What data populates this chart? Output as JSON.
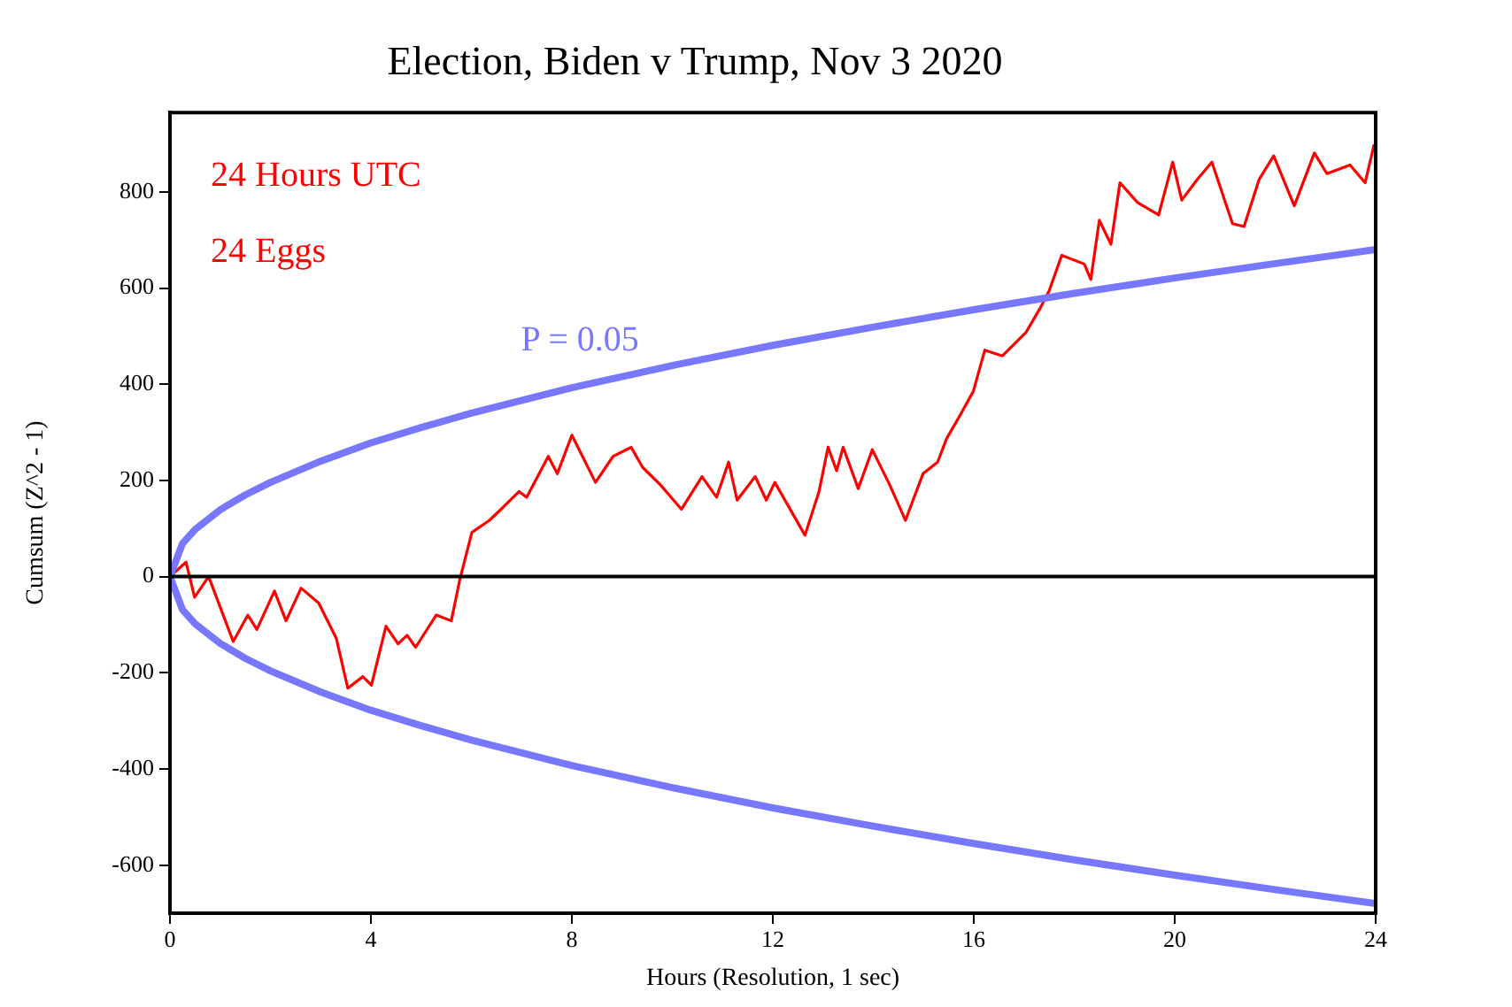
{
  "chart_data": {
    "type": "line",
    "title": "Election, Biden v Trump, Nov 3 2020",
    "xlabel": "Hours (Resolution, 1 sec)",
    "ylabel": "Cumsum (Z^2 - 1)",
    "xlim": [
      0,
      24
    ],
    "xticks": [
      0,
      4,
      8,
      12,
      16,
      20,
      24
    ],
    "ylim": [
      -700,
      965
    ],
    "yticks": [
      -600,
      -400,
      -200,
      0,
      200,
      400,
      600,
      800
    ],
    "grid": false,
    "legend": false,
    "marker": "none",
    "line_style": "solid",
    "annotations": [
      "24 Hours UTC",
      "24 Eggs",
      "P = 0.05"
    ],
    "ref_lines": [
      {
        "axis": "y",
        "value": 0,
        "color": "#000000"
      }
    ],
    "series": [
      {
        "color": "#ff0000",
        "x": [
          0,
          0.32,
          0.49,
          0.77,
          1.26,
          1.55,
          1.73,
          2.08,
          2.31,
          2.61,
          2.96,
          3.31,
          3.54,
          3.84,
          4.01,
          4.3,
          4.54,
          4.72,
          4.89,
          5.3,
          5.6,
          5.77,
          6.01,
          6.36,
          6.59,
          6.95,
          7.1,
          7.53,
          7.71,
          8.0,
          8.47,
          8.82,
          9.18,
          9.41,
          9.77,
          10.18,
          10.59,
          10.88,
          11.12,
          11.29,
          11.65,
          11.87,
          12.04,
          12.64,
          12.92,
          13.1,
          13.27,
          13.4,
          13.7,
          13.98,
          14.33,
          14.64,
          14.99,
          15.28,
          15.46,
          15.74,
          15.99,
          16.22,
          16.57,
          17.04,
          17.32,
          17.5,
          17.75,
          18.2,
          18.33,
          18.5,
          18.73,
          18.91,
          19.26,
          19.68,
          19.96,
          20.14,
          20.45,
          20.74,
          21.15,
          21.38,
          21.68,
          21.97,
          22.38,
          22.78,
          23.03,
          23.49,
          23.79,
          23.97
        ],
        "values": [
          0,
          30,
          -43,
          0,
          -135,
          -80,
          -110,
          -30,
          -92,
          -24,
          -55,
          -128,
          -232,
          -208,
          -226,
          -103,
          -140,
          -122,
          -147,
          -80,
          -92,
          -6,
          92,
          117,
          140,
          177,
          165,
          250,
          214,
          294,
          196,
          250,
          269,
          227,
          190,
          140,
          208,
          165,
          238,
          159,
          208,
          159,
          196,
          86,
          177,
          269,
          220,
          269,
          183,
          264,
          190,
          117,
          214,
          238,
          287,
          338,
          385,
          471,
          459,
          508,
          558,
          594,
          668,
          650,
          618,
          741,
          691,
          819,
          778,
          752,
          862,
          783,
          826,
          862,
          734,
          728,
          826,
          875,
          771,
          881,
          838,
          856,
          819,
          899
        ]
      },
      {
        "color": "#7777ff",
        "x": [
          0,
          0.25,
          0.5,
          1,
          1.5,
          2,
          3,
          4,
          5,
          6,
          8,
          10,
          12,
          14,
          16,
          18,
          20,
          22,
          24
        ],
        "values": [
          0,
          69,
          98,
          139,
          170,
          196,
          240,
          278,
          310,
          340,
          393,
          439,
          481,
          519,
          555,
          589,
          621,
          651,
          680
        ]
      },
      {
        "color": "#7777ff",
        "x": [
          0,
          0.25,
          0.5,
          1,
          1.5,
          2,
          3,
          4,
          5,
          6,
          8,
          10,
          12,
          14,
          16,
          18,
          20,
          22,
          24
        ],
        "values": [
          0,
          -69,
          -98,
          -139,
          -170,
          -196,
          -240,
          -278,
          -310,
          -340,
          -393,
          -439,
          -481,
          -519,
          -555,
          -589,
          -621,
          -651,
          -680
        ]
      }
    ]
  }
}
